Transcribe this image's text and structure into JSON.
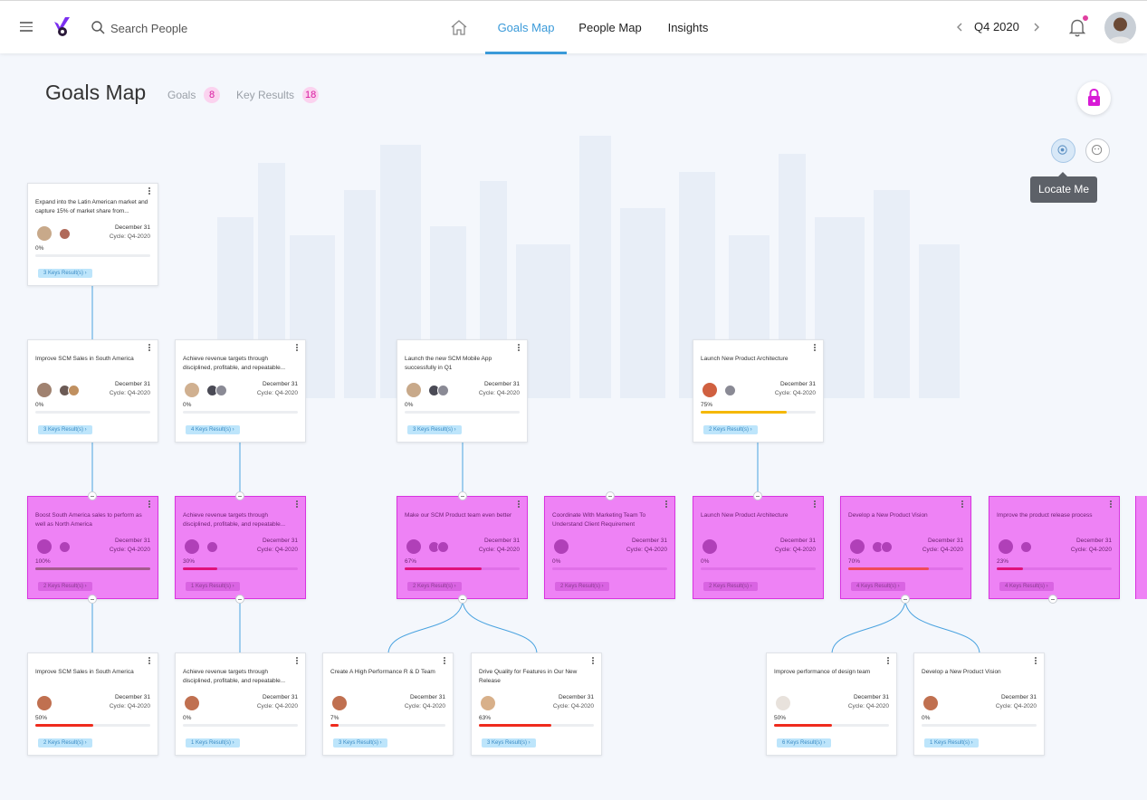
{
  "header": {
    "search_placeholder": "Search People",
    "tabs": [
      {
        "label": "Goals Map",
        "active": true
      },
      {
        "label": "People Map",
        "active": false
      },
      {
        "label": "Insights",
        "active": false
      }
    ],
    "cycle": "Q4 2020",
    "icons": [
      "menu-icon",
      "logo",
      "search-icon",
      "home-icon",
      "chevron-left-icon",
      "chevron-right-icon",
      "bell-icon"
    ]
  },
  "page": {
    "title": "Goals Map",
    "goals_label": "Goals",
    "goals_count": "8",
    "kr_label": "Key Results",
    "kr_count": "18",
    "tooltip": "Locate Me"
  },
  "colors": {
    "accent": "#3a9ad9",
    "pink_card": "#ee82f5",
    "badge_text": "#d81aa0",
    "bar_red": "#ef2b1d",
    "bar_yellow": "#f5b800",
    "bar_magenta": "#e0117a"
  },
  "cards": [
    {
      "id": "c1",
      "title": "Expand into the Latin American market and capture 15% of market share from...",
      "due": "December 31",
      "cycle": "Cycle: Q4-2020",
      "progress": 0,
      "pct": "0%",
      "kr": "3 Keys Result(s)",
      "pink": false
    },
    {
      "id": "c2",
      "title": "Improve SCM Sales in South America",
      "due": "December 31",
      "cycle": "Cycle: Q4-2020",
      "progress": 0,
      "pct": "0%",
      "kr": "3 Keys Result(s)",
      "pink": false
    },
    {
      "id": "c3",
      "title": "Achieve revenue targets through disciplined, profitable, and repeatable...",
      "due": "December 31",
      "cycle": "Cycle: Q4-2020",
      "progress": 0,
      "pct": "0%",
      "kr": "4 Keys Result(s)",
      "pink": false
    },
    {
      "id": "c4",
      "title": "Launch the new SCM Mobile App successfully in Q1",
      "due": "December 31",
      "cycle": "Cycle: Q4-2020",
      "progress": 0,
      "pct": "0%",
      "kr": "3 Keys Result(s)",
      "pink": false
    },
    {
      "id": "c5",
      "title": "Launch New Product Architecture",
      "due": "December 31",
      "cycle": "Cycle: Q4-2020",
      "progress": 75,
      "pct": "75%",
      "kr": "2 Keys Result(s)",
      "pink": false
    },
    {
      "id": "p1",
      "title": "Boost South America sales to perform as well as North America",
      "due": "December 31",
      "cycle": "Cycle: Q4-2020",
      "progress": 100,
      "pct": "100%",
      "kr": "2 Keys Result(s)",
      "pink": true
    },
    {
      "id": "p2",
      "title": "Achieve revenue targets through disciplined, profitable, and repeatable...",
      "due": "December 31",
      "cycle": "Cycle: Q4-2020",
      "progress": 30,
      "pct": "30%",
      "kr": "1 Keys Result(s)",
      "pink": true
    },
    {
      "id": "p3",
      "title": "Make our SCM Product team even better",
      "due": "December 31",
      "cycle": "Cycle: Q4-2020",
      "progress": 67,
      "pct": "67%",
      "kr": "2 Keys Result(s)",
      "pink": true
    },
    {
      "id": "p4",
      "title": "Coordinate With Marketing Team To Understand Client Requirement",
      "due": "December 31",
      "cycle": "Cycle: Q4-2020",
      "progress": 0,
      "pct": "0%",
      "kr": "2 Keys Result(s)",
      "pink": true
    },
    {
      "id": "p5",
      "title": "Launch New Product Architecture",
      "due": "December 31",
      "cycle": "Cycle: Q4-2020",
      "progress": 0,
      "pct": "0%",
      "kr": "2 Keys Result(s)",
      "pink": true
    },
    {
      "id": "p6",
      "title": "Develop a New Product Vision",
      "due": "December 31",
      "cycle": "Cycle: Q4-2020",
      "progress": 70,
      "pct": "70%",
      "kr": "4 Keys Result(s)",
      "pink": true
    },
    {
      "id": "p7",
      "title": "Improve the product release process",
      "due": "December 31",
      "cycle": "Cycle: Q4-2020",
      "progress": 23,
      "pct": "23%",
      "kr": "4 Keys Result(s)",
      "pink": true
    },
    {
      "id": "b1",
      "title": "Improve SCM Sales in South America",
      "due": "December 31",
      "cycle": "Cycle: Q4-2020",
      "progress": 50,
      "pct": "50%",
      "kr": "2 Keys Result(s)",
      "pink": false
    },
    {
      "id": "b2",
      "title": "Achieve revenue targets through disciplined, profitable, and repeatable...",
      "due": "December 31",
      "cycle": "Cycle: Q4-2020",
      "progress": 0,
      "pct": "0%",
      "kr": "1 Keys Result(s)",
      "pink": false
    },
    {
      "id": "b3",
      "title": "Create A High Performance R & D Team",
      "due": "December 31",
      "cycle": "Cycle: Q4-2020",
      "progress": 7,
      "pct": "7%",
      "kr": "3 Keys Result(s)",
      "pink": false
    },
    {
      "id": "b4",
      "title": "Drive Quality for Features in Our New Release",
      "due": "December 31",
      "cycle": "Cycle: Q4-2020",
      "progress": 63,
      "pct": "63%",
      "kr": "3 Keys Result(s)",
      "pink": false
    },
    {
      "id": "b5",
      "title": "Improve performance of design team",
      "due": "December 31",
      "cycle": "Cycle: Q4-2020",
      "progress": 50,
      "pct": "50%",
      "kr": "6 Keys Result(s)",
      "pink": false
    },
    {
      "id": "b6",
      "title": "Develop a New Product Vision",
      "due": "December 31",
      "cycle": "Cycle: Q4-2020",
      "progress": 0,
      "pct": "0%",
      "kr": "1 Keys Result(s)",
      "pink": false
    }
  ]
}
